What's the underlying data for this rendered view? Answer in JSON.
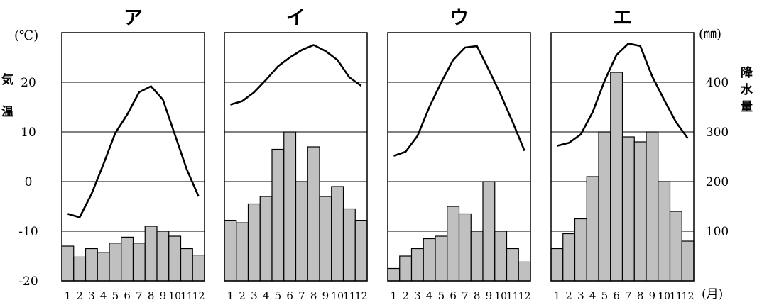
{
  "chart_data": {
    "type": "climograph",
    "left_axis": {
      "unit_label": "(℃)",
      "title_chars": [
        "気",
        "温"
      ],
      "ticks": [
        -20,
        -10,
        0,
        10,
        20
      ],
      "range": [
        -20,
        30
      ]
    },
    "right_axis": {
      "unit_label": "(㎜)",
      "title_chars": [
        "降",
        "水",
        "量"
      ],
      "ticks": [
        100,
        200,
        300,
        400
      ],
      "range": [
        0,
        500
      ]
    },
    "x_unit_label": "(月)",
    "months": [
      "1",
      "2",
      "3",
      "4",
      "5",
      "6",
      "7",
      "8",
      "9",
      "10",
      "11",
      "12"
    ],
    "panels": [
      {
        "title": "ア",
        "temperature": [
          -6.5,
          -7.2,
          -2.5,
          3.5,
          9.8,
          13.5,
          18,
          19.2,
          16.5,
          9.5,
          2.5,
          -3
        ],
        "precipitation": [
          70,
          48,
          65,
          57,
          76,
          88,
          76,
          110,
          100,
          90,
          65,
          52
        ]
      },
      {
        "title": "イ",
        "temperature": [
          15.5,
          16.2,
          18,
          20.5,
          23.2,
          25,
          26.5,
          27.5,
          26.3,
          24.5,
          21,
          19.3
        ],
        "precipitation": [
          122,
          117,
          155,
          170,
          265,
          300,
          200,
          270,
          170,
          190,
          145,
          122
        ]
      },
      {
        "title": "ウ",
        "temperature": [
          5.2,
          6,
          9.2,
          15,
          20,
          24.5,
          27,
          27.3,
          22.5,
          17.5,
          12,
          6.2
        ],
        "precipitation": [
          25,
          50,
          65,
          85,
          90,
          150,
          135,
          100,
          200,
          100,
          65,
          38
        ]
      },
      {
        "title": "エ",
        "temperature": [
          7.2,
          7.8,
          9.5,
          14,
          20.3,
          25.5,
          27.8,
          27.3,
          21.2,
          16.5,
          12,
          8.7
        ],
        "precipitation": [
          65,
          95,
          125,
          210,
          300,
          420,
          290,
          280,
          300,
          200,
          140,
          80
        ]
      }
    ]
  }
}
